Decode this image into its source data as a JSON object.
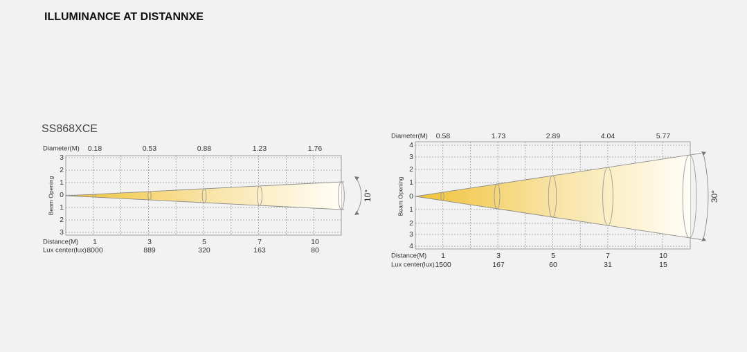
{
  "header": {
    "title": "ILLUMINANCE AT DISTANNXE"
  },
  "diagrams": [
    {
      "model": "SS868XCE",
      "diameter_label": "Diameter(M)",
      "diameters": [
        "0.18",
        "0.53",
        "0.88",
        "1.23",
        "1.76"
      ],
      "beam_label": "Beam Opening",
      "opening_ticks": [
        "3",
        "2",
        "1",
        "0",
        "1",
        "2",
        "3"
      ],
      "distance_label": "Distance(M)",
      "distances": [
        "1",
        "3",
        "5",
        "7",
        "10"
      ],
      "lux_label": "Lux center(lux)",
      "lux": [
        "8000",
        "889",
        "320",
        "163",
        "80"
      ],
      "angle": "10°"
    },
    {
      "diameter_label": "Diameter(M)",
      "diameters": [
        "0.58",
        "1.73",
        "2.89",
        "4.04",
        "5.77"
      ],
      "beam_label": "Beam Opening",
      "opening_ticks": [
        "4",
        "3",
        "2",
        "1",
        "0",
        "1",
        "2",
        "3",
        "4"
      ],
      "distance_label": "Distance(M)",
      "distances": [
        "1",
        "3",
        "5",
        "7",
        "10"
      ],
      "lux_label": "Lux center(lux)",
      "lux": [
        "1500",
        "167",
        "60",
        "31",
        "15"
      ],
      "angle": "30°"
    }
  ]
}
